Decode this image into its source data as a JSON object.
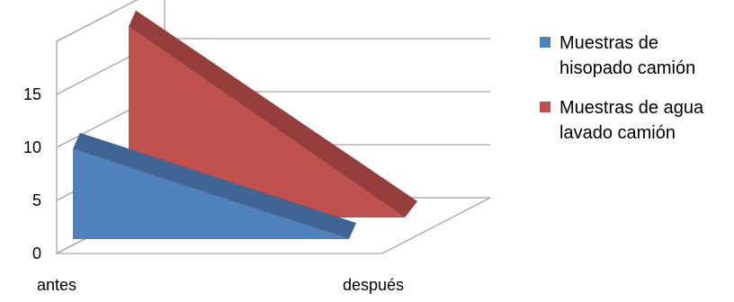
{
  "chart_data": {
    "type": "area",
    "style": "3d-area",
    "categories": [
      "antes",
      "después"
    ],
    "ylim": [
      0,
      20
    ],
    "y_ticks": [
      0,
      5,
      10,
      15
    ],
    "grid": true,
    "legend_position": "right",
    "series": [
      {
        "name": "Muestras de\nhisopado camión",
        "values": [
          8.5,
          0
        ],
        "color": "#4f81bd"
      },
      {
        "name": "Muestras de agua\nlavado  camión",
        "values": [
          18,
          0
        ],
        "color": "#c0504d"
      }
    ]
  }
}
